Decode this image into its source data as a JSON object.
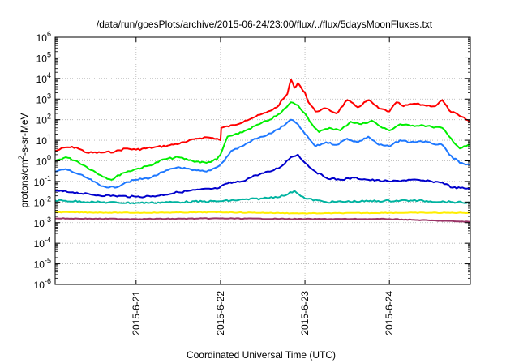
{
  "chart_data": {
    "type": "line",
    "title": "/data/run/goesPlots/archive/2015-06-24/23:00/flux/../flux/5daysMoonFluxes.txt",
    "xlabel": "Coordinated Universal Time (UTC)",
    "ylabel": {
      "prefix": "protons/cm",
      "sup": "2",
      "suffix": "-s-sr-MeV"
    },
    "yscale": "log",
    "ylim_exp": [
      -6,
      6
    ],
    "ytick_exps": [
      -6,
      -5,
      -4,
      -3,
      -2,
      -1,
      0,
      1,
      2,
      3,
      4,
      5,
      6
    ],
    "xlim": [
      "2015-06-20T01:00",
      "2015-06-24T23:00"
    ],
    "xticks": [
      {
        "label": "2015-6-21",
        "x": "2015-06-21T00:00"
      },
      {
        "label": "2015-6-22",
        "x": "2015-06-22T00:00"
      },
      {
        "label": "2015-6-23",
        "x": "2015-06-23T00:00"
      },
      {
        "label": "2015-6-24",
        "x": "2015-06-24T00:00"
      }
    ],
    "grid": "dotted, both axes",
    "legend": "none",
    "series": [
      {
        "color": "#ff0000",
        "points": [
          [
            "2015-06-20T01:00",
            3.0
          ],
          [
            "2015-06-20T04:00",
            4.5
          ],
          [
            "2015-06-20T07:00",
            4.5
          ],
          [
            "2015-06-20T10:00",
            2.5
          ],
          [
            "2015-06-20T14:00",
            2.5
          ],
          [
            "2015-06-20T18:00",
            2.8
          ],
          [
            "2015-06-20T21:00",
            4.0
          ],
          [
            "2015-06-21T00:00",
            3.5
          ],
          [
            "2015-06-21T05:00",
            4.5
          ],
          [
            "2015-06-21T09:00",
            5.5
          ],
          [
            "2015-06-21T14:00",
            8.0
          ],
          [
            "2015-06-21T17:00",
            12
          ],
          [
            "2015-06-21T20:00",
            14
          ],
          [
            "2015-06-21T23:00",
            12
          ],
          [
            "2015-06-22T00:00",
            10
          ],
          [
            "2015-06-22T00:12",
            40
          ],
          [
            "2015-06-22T04:00",
            55
          ],
          [
            "2015-06-22T07:00",
            90
          ],
          [
            "2015-06-22T10:00",
            140
          ],
          [
            "2015-06-22T13:00",
            220
          ],
          [
            "2015-06-22T16:00",
            400
          ],
          [
            "2015-06-22T19:00",
            1800
          ],
          [
            "2015-06-22T20:00",
            9000
          ],
          [
            "2015-06-22T21:00",
            3500
          ],
          [
            "2015-06-22T22:00",
            6000
          ],
          [
            "2015-06-23T00:00",
            2000
          ],
          [
            "2015-06-23T01:00",
            700
          ],
          [
            "2015-06-23T03:00",
            250
          ],
          [
            "2015-06-23T06:00",
            350
          ],
          [
            "2015-06-23T09:00",
            200
          ],
          [
            "2015-06-23T12:00",
            900
          ],
          [
            "2015-06-23T15:00",
            400
          ],
          [
            "2015-06-23T18:00",
            900
          ],
          [
            "2015-06-23T21:00",
            350
          ],
          [
            "2015-06-24T00:00",
            250
          ],
          [
            "2015-06-24T02:00",
            700
          ],
          [
            "2015-06-24T04:00",
            450
          ],
          [
            "2015-06-24T07:00",
            600
          ],
          [
            "2015-06-24T10:00",
            500
          ],
          [
            "2015-06-24T13:00",
            450
          ],
          [
            "2015-06-24T15:00",
            900
          ],
          [
            "2015-06-24T17:00",
            280
          ],
          [
            "2015-06-24T20:00",
            150
          ],
          [
            "2015-06-24T23:00",
            80
          ]
        ]
      },
      {
        "color": "#00ee00",
        "points": [
          [
            "2015-06-20T01:00",
            1.0
          ],
          [
            "2015-06-20T04:00",
            1.5
          ],
          [
            "2015-06-20T07:00",
            1.0
          ],
          [
            "2015-06-20T10:00",
            0.5
          ],
          [
            "2015-06-20T14:00",
            0.2
          ],
          [
            "2015-06-20T17:00",
            0.12
          ],
          [
            "2015-06-20T20:00",
            0.25
          ],
          [
            "2015-06-21T00:00",
            0.4
          ],
          [
            "2015-06-21T04:00",
            0.6
          ],
          [
            "2015-06-21T08:00",
            1.2
          ],
          [
            "2015-06-21T12:00",
            1.5
          ],
          [
            "2015-06-21T16:00",
            1.0
          ],
          [
            "2015-06-21T20:00",
            0.8
          ],
          [
            "2015-06-21T23:00",
            1.2
          ],
          [
            "2015-06-22T00:00",
            2.0
          ],
          [
            "2015-06-22T02:00",
            15
          ],
          [
            "2015-06-22T05:00",
            20
          ],
          [
            "2015-06-22T08:00",
            35
          ],
          [
            "2015-06-22T11:00",
            60
          ],
          [
            "2015-06-22T14:00",
            100
          ],
          [
            "2015-06-22T17:00",
            200
          ],
          [
            "2015-06-22T20:00",
            700
          ],
          [
            "2015-06-22T22:00",
            500
          ],
          [
            "2015-06-23T00:00",
            200
          ],
          [
            "2015-06-23T02:00",
            60
          ],
          [
            "2015-06-23T04:00",
            25
          ],
          [
            "2015-06-23T07:00",
            40
          ],
          [
            "2015-06-23T10:00",
            30
          ],
          [
            "2015-06-23T13:00",
            80
          ],
          [
            "2015-06-23T16:00",
            60
          ],
          [
            "2015-06-23T19:00",
            90
          ],
          [
            "2015-06-23T22:00",
            40
          ],
          [
            "2015-06-24T00:00",
            30
          ],
          [
            "2015-06-24T03:00",
            60
          ],
          [
            "2015-06-24T06:00",
            50
          ],
          [
            "2015-06-24T09:00",
            55
          ],
          [
            "2015-06-24T12:00",
            45
          ],
          [
            "2015-06-24T15:00",
            40
          ],
          [
            "2015-06-24T17:00",
            15
          ],
          [
            "2015-06-24T20:00",
            4
          ],
          [
            "2015-06-24T23:00",
            6
          ]
        ]
      },
      {
        "color": "#1e78ff",
        "points": [
          [
            "2015-06-20T01:00",
            0.3
          ],
          [
            "2015-06-20T04:00",
            0.4
          ],
          [
            "2015-06-20T07:00",
            0.25
          ],
          [
            "2015-06-20T10:00",
            0.15
          ],
          [
            "2015-06-20T14:00",
            0.06
          ],
          [
            "2015-06-20T18:00",
            0.05
          ],
          [
            "2015-06-20T21:00",
            0.09
          ],
          [
            "2015-06-21T00:00",
            0.12
          ],
          [
            "2015-06-21T04:00",
            0.15
          ],
          [
            "2015-06-21T08:00",
            0.3
          ],
          [
            "2015-06-21T12:00",
            0.5
          ],
          [
            "2015-06-21T16:00",
            0.35
          ],
          [
            "2015-06-21T20:00",
            0.3
          ],
          [
            "2015-06-21T23:00",
            0.5
          ],
          [
            "2015-06-22T01:00",
            1.0
          ],
          [
            "2015-06-22T03:00",
            3
          ],
          [
            "2015-06-22T06:00",
            5
          ],
          [
            "2015-06-22T09:00",
            10
          ],
          [
            "2015-06-22T12:00",
            15
          ],
          [
            "2015-06-22T15:00",
            25
          ],
          [
            "2015-06-22T18:00",
            50
          ],
          [
            "2015-06-22T20:00",
            100
          ],
          [
            "2015-06-22T22:00",
            60
          ],
          [
            "2015-06-23T00:00",
            20
          ],
          [
            "2015-06-23T03:00",
            5
          ],
          [
            "2015-06-23T06:00",
            8
          ],
          [
            "2015-06-23T09:00",
            6
          ],
          [
            "2015-06-23T12:00",
            12
          ],
          [
            "2015-06-23T15:00",
            8
          ],
          [
            "2015-06-23T18:00",
            15
          ],
          [
            "2015-06-23T21:00",
            6
          ],
          [
            "2015-06-24T00:00",
            5
          ],
          [
            "2015-06-24T03:00",
            10
          ],
          [
            "2015-06-24T06:00",
            8
          ],
          [
            "2015-06-24T09:00",
            9
          ],
          [
            "2015-06-24T12:00",
            7
          ],
          [
            "2015-06-24T15:00",
            6
          ],
          [
            "2015-06-24T17:00",
            2
          ],
          [
            "2015-06-24T20:00",
            0.8
          ],
          [
            "2015-06-24T23:00",
            0.6
          ]
        ]
      },
      {
        "color": "#0000cc",
        "points": [
          [
            "2015-06-20T01:00",
            0.035
          ],
          [
            "2015-06-20T06:00",
            0.03
          ],
          [
            "2015-06-20T12:00",
            0.022
          ],
          [
            "2015-06-20T18:00",
            0.02
          ],
          [
            "2015-06-21T00:00",
            0.018
          ],
          [
            "2015-06-21T06:00",
            0.02
          ],
          [
            "2015-06-21T12:00",
            0.03
          ],
          [
            "2015-06-21T18:00",
            0.04
          ],
          [
            "2015-06-21T23:00",
            0.045
          ],
          [
            "2015-06-22T02:00",
            0.08
          ],
          [
            "2015-06-22T06:00",
            0.1
          ],
          [
            "2015-06-22T10:00",
            0.2
          ],
          [
            "2015-06-22T14:00",
            0.3
          ],
          [
            "2015-06-22T17:00",
            0.5
          ],
          [
            "2015-06-22T20:00",
            1.5
          ],
          [
            "2015-06-22T22:00",
            2.0
          ],
          [
            "2015-06-23T00:00",
            0.8
          ],
          [
            "2015-06-23T03:00",
            0.3
          ],
          [
            "2015-06-23T06:00",
            0.15
          ],
          [
            "2015-06-23T10:00",
            0.12
          ],
          [
            "2015-06-23T14:00",
            0.15
          ],
          [
            "2015-06-23T18:00",
            0.12
          ],
          [
            "2015-06-24T00:00",
            0.1
          ],
          [
            "2015-06-24T06:00",
            0.12
          ],
          [
            "2015-06-24T12:00",
            0.1
          ],
          [
            "2015-06-24T15:00",
            0.09
          ],
          [
            "2015-06-24T18:00",
            0.05
          ],
          [
            "2015-06-24T23:00",
            0.045
          ]
        ]
      },
      {
        "color": "#00b3a0",
        "points": [
          [
            "2015-06-20T01:00",
            0.012
          ],
          [
            "2015-06-20T12:00",
            0.01
          ],
          [
            "2015-06-21T00:00",
            0.009
          ],
          [
            "2015-06-21T12:00",
            0.01
          ],
          [
            "2015-06-22T00:00",
            0.011
          ],
          [
            "2015-06-22T12:00",
            0.015
          ],
          [
            "2015-06-22T18:00",
            0.02
          ],
          [
            "2015-06-22T21:00",
            0.035
          ],
          [
            "2015-06-23T00:00",
            0.015
          ],
          [
            "2015-06-23T06:00",
            0.01
          ],
          [
            "2015-06-23T18:00",
            0.011
          ],
          [
            "2015-06-24T06:00",
            0.012
          ],
          [
            "2015-06-24T18:00",
            0.01
          ],
          [
            "2015-06-24T23:00",
            0.009
          ]
        ]
      },
      {
        "color": "#ffee00",
        "points": [
          [
            "2015-06-20T01:00",
            0.0032
          ],
          [
            "2015-06-21T00:00",
            0.003
          ],
          [
            "2015-06-22T00:00",
            0.0032
          ],
          [
            "2015-06-23T00:00",
            0.0028
          ],
          [
            "2015-06-24T00:00",
            0.003
          ],
          [
            "2015-06-24T23:00",
            0.003
          ]
        ]
      },
      {
        "color": "#993366",
        "points": [
          [
            "2015-06-20T01:00",
            0.0016
          ],
          [
            "2015-06-21T00:00",
            0.0015
          ],
          [
            "2015-06-22T00:00",
            0.0016
          ],
          [
            "2015-06-23T00:00",
            0.0015
          ],
          [
            "2015-06-24T00:00",
            0.0015
          ],
          [
            "2015-06-24T23:00",
            0.0011
          ]
        ]
      }
    ]
  }
}
